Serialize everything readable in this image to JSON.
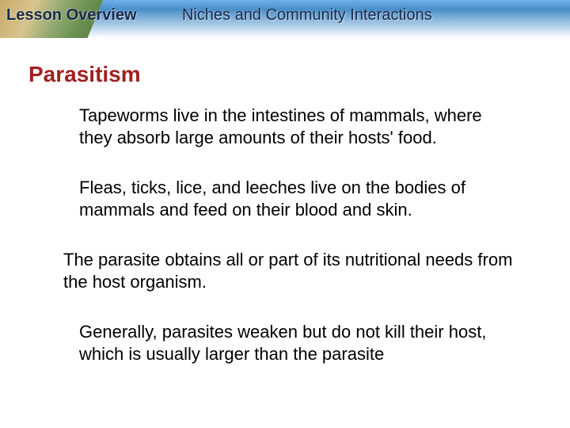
{
  "header": {
    "lesson_label": "Lesson Overview",
    "title": "Niches and Community Interactions",
    "gradient_top": "#6fb0e8",
    "gradient_mid": "#4a8fc9",
    "text_color": "#1a2a4a"
  },
  "section": {
    "title": "Parasitism",
    "title_color": "#a02020",
    "title_fontsize": 28
  },
  "paragraphs": {
    "p1": "Tapeworms live in the intestines of mammals, where they absorb large amounts of their hosts' food.",
    "p2": "Fleas, ticks, lice, and leeches live on the bodies of mammals and feed on their blood and skin.",
    "p3": "The parasite obtains all or part of its nutritional needs from the host organism.",
    "p4": "Generally, parasites weaken but do not kill their host, which is usually larger than the parasite"
  },
  "body_fontsize": 22,
  "body_color": "#000000",
  "background_color": "#ffffff"
}
